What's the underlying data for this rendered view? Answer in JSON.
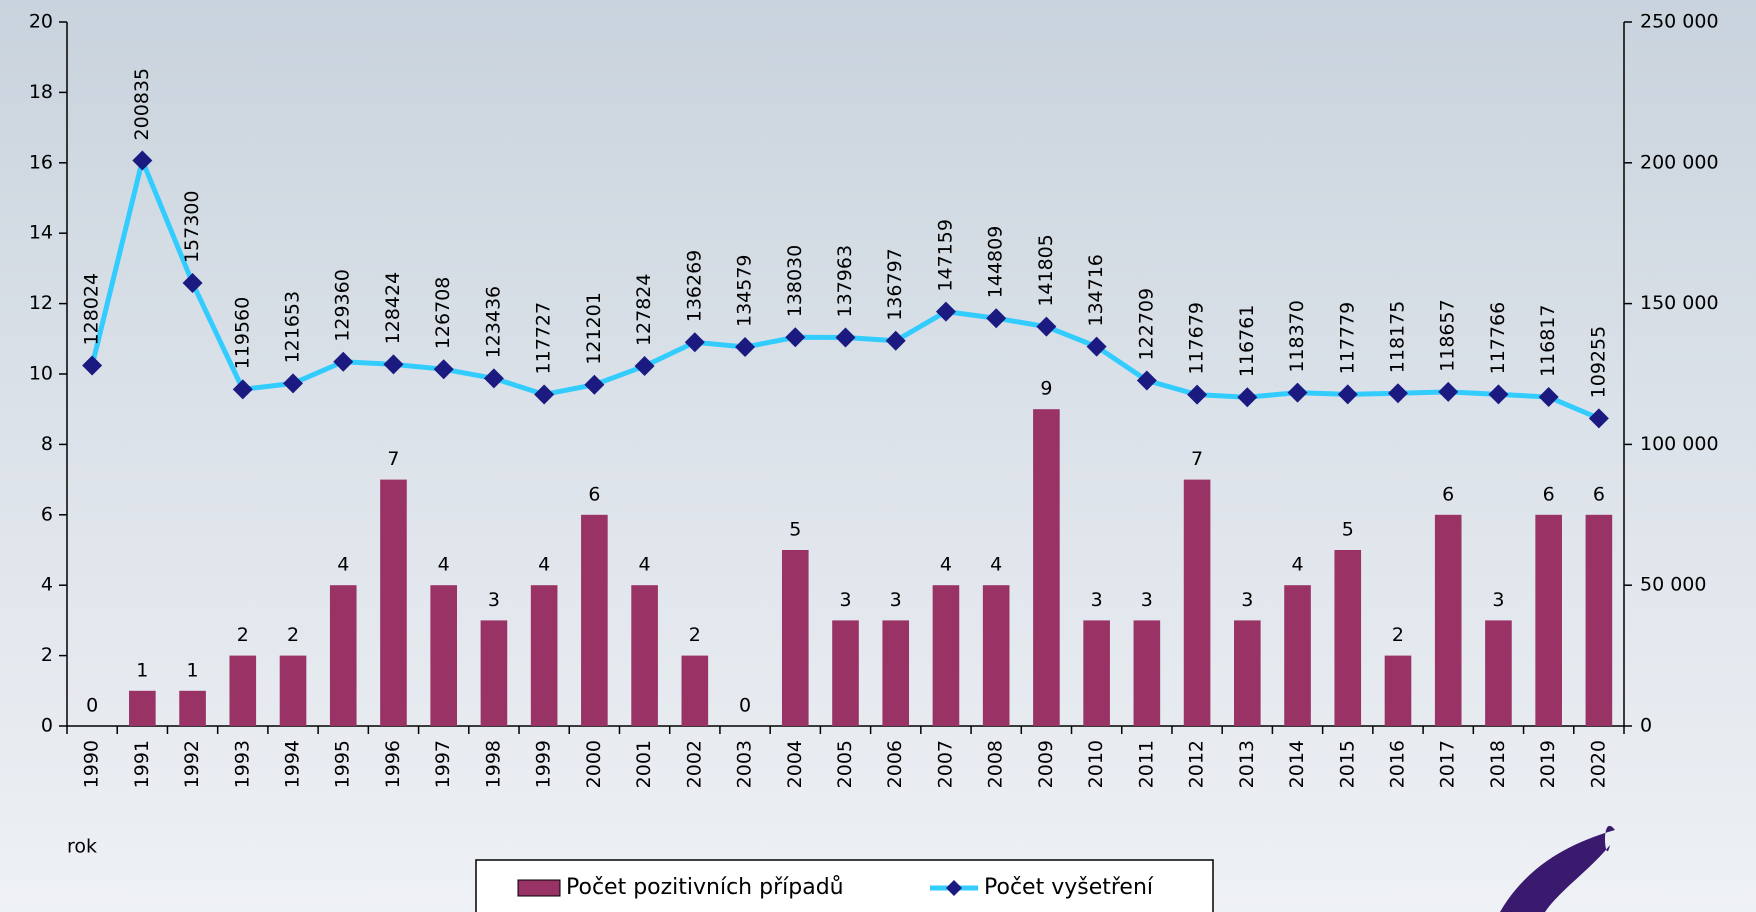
{
  "chart_data": {
    "type": "bar",
    "categories": [
      "1990",
      "1991",
      "1992",
      "1993",
      "1994",
      "1995",
      "1996",
      "1997",
      "1998",
      "1999",
      "2000",
      "2001",
      "2002",
      "2003",
      "2004",
      "2005",
      "2006",
      "2007",
      "2008",
      "2009",
      "2010",
      "2011",
      "2012",
      "2013",
      "2014",
      "2015",
      "2016",
      "2017",
      "2018",
      "2019",
      "2020"
    ],
    "x_label": "rok",
    "series": [
      {
        "name": "Počet pozitivních případů",
        "type": "bar",
        "color": "#993366",
        "values": [
          0,
          1,
          1,
          2,
          2,
          4,
          7,
          4,
          3,
          4,
          6,
          4,
          2,
          0,
          5,
          3,
          3,
          4,
          4,
          9,
          3,
          3,
          7,
          3,
          4,
          5,
          2,
          6,
          3,
          6,
          6
        ]
      },
      {
        "name": "Počet vyšetření",
        "type": "line",
        "axis": "y2",
        "color": "#33ccff",
        "marker_color": "#1a1a80",
        "values": [
          128024,
          200835,
          157300,
          119560,
          121653,
          129360,
          128424,
          126708,
          123436,
          117727,
          121201,
          127824,
          136269,
          134579,
          138030,
          137963,
          136797,
          147159,
          144809,
          141805,
          134716,
          122709,
          117679,
          116761,
          118370,
          117779,
          118175,
          118657,
          117766,
          116817,
          109255
        ]
      }
    ],
    "ylim": [
      0,
      20
    ],
    "yticks": [
      0,
      2,
      4,
      6,
      8,
      10,
      12,
      14,
      16,
      18,
      20
    ],
    "y2lim": [
      0,
      250000
    ],
    "y2ticks": [
      {
        "value": 0,
        "label": "0"
      },
      {
        "value": 50000,
        "label": "50 000"
      },
      {
        "value": 100000,
        "label": "100 000"
      },
      {
        "value": 150000,
        "label": "150 000"
      },
      {
        "value": 200000,
        "label": "200 000"
      },
      {
        "value": 250000,
        "label": "250 000"
      }
    ],
    "legend": "bottom",
    "grid": false
  }
}
